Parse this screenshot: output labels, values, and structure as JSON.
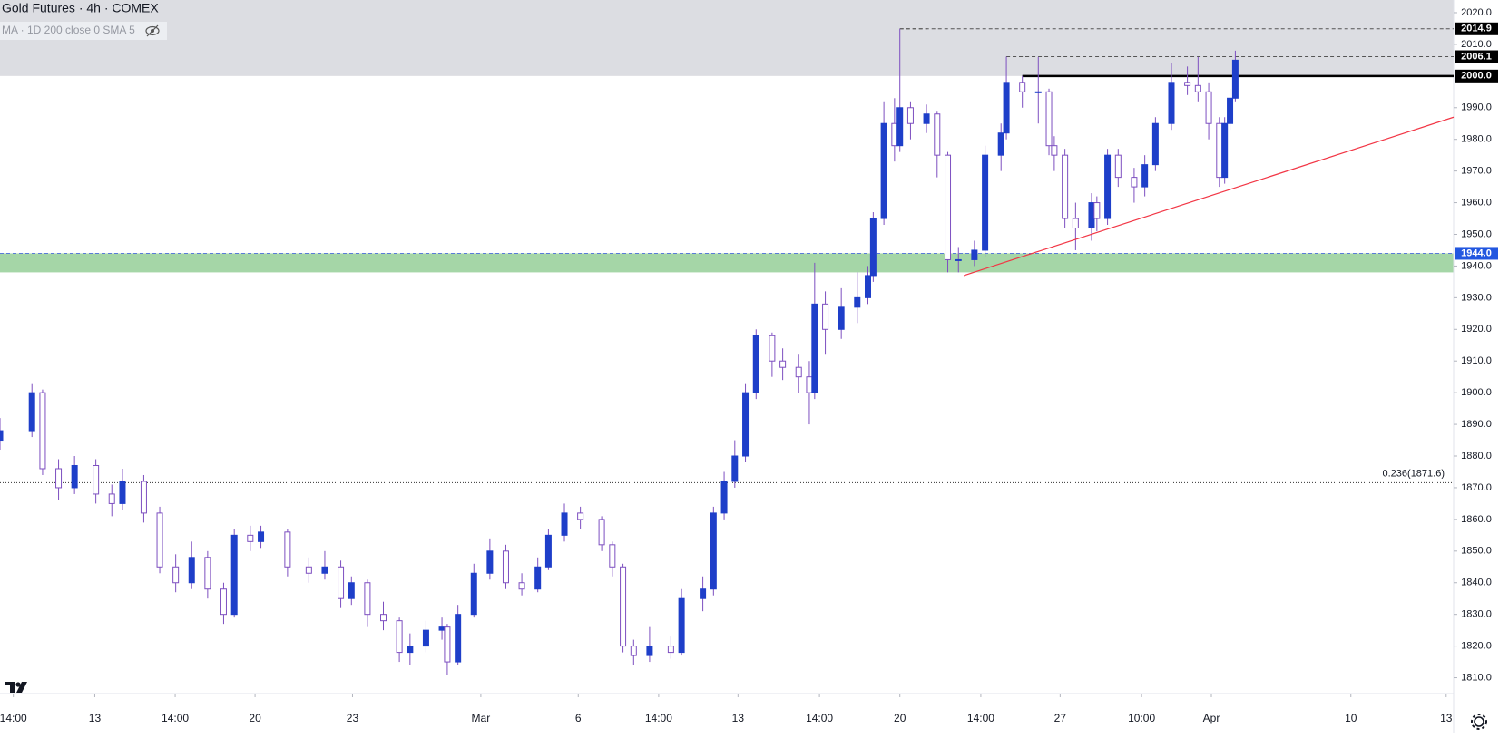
{
  "chart_data": {
    "type": "candlestick",
    "title": "Gold Futures · 4h · COMEX",
    "subtitle": "MA · 1D 200 close 0 SMA 5",
    "up_color": "#1e3fc9",
    "down_color": "#7d4fc0",
    "xlim": [
      0,
      273
    ],
    "ylim": [
      1805,
      2024
    ],
    "xticks": [
      {
        "value": 2.5,
        "label": "14:00"
      },
      {
        "value": 17.8,
        "label": "13"
      },
      {
        "value": 32.9,
        "label": "14:00"
      },
      {
        "value": 47.9,
        "label": "20"
      },
      {
        "value": 66.2,
        "label": "23"
      },
      {
        "value": 90.3,
        "label": "Mar"
      },
      {
        "value": 108.6,
        "label": "6"
      },
      {
        "value": 123.7,
        "label": "14:00"
      },
      {
        "value": 138.6,
        "label": "13"
      },
      {
        "value": 153.9,
        "label": "14:00"
      },
      {
        "value": 169,
        "label": "20"
      },
      {
        "value": 184.2,
        "label": "14:00"
      },
      {
        "value": 199.1,
        "label": "27"
      },
      {
        "value": 214.4,
        "label": "10:00"
      },
      {
        "value": 227.5,
        "label": "Apr"
      },
      {
        "value": 253.7,
        "label": "10"
      },
      {
        "value": 271.6,
        "label": "13"
      }
    ],
    "yticks": [
      {
        "value": 1810,
        "label": "1810.0"
      },
      {
        "value": 1820,
        "label": "1820.0"
      },
      {
        "value": 1830,
        "label": "1830.0"
      },
      {
        "value": 1840,
        "label": "1840.0"
      },
      {
        "value": 1850,
        "label": "1850.0"
      },
      {
        "value": 1860,
        "label": "1860.0"
      },
      {
        "value": 1870,
        "label": "1870.0"
      },
      {
        "value": 1880,
        "label": "1880.0"
      },
      {
        "value": 1890,
        "label": "1890.0"
      },
      {
        "value": 1900,
        "label": "1900.0"
      },
      {
        "value": 1910,
        "label": "1910.0"
      },
      {
        "value": 1920,
        "label": "1920.0"
      },
      {
        "value": 1930,
        "label": "1930.0"
      },
      {
        "value": 1940,
        "label": "1940.0"
      },
      {
        "value": 1950,
        "label": "1950.0"
      },
      {
        "value": 1960,
        "label": "1960.0"
      },
      {
        "value": 1970,
        "label": "1970.0"
      },
      {
        "value": 1980,
        "label": "1980.0"
      },
      {
        "value": 1990,
        "label": "1990.0"
      },
      {
        "value": 2010,
        "label": "2010.0"
      },
      {
        "value": 2020,
        "label": "2020.0"
      }
    ],
    "x": [
      0,
      6,
      8,
      11,
      14,
      18,
      21,
      23,
      27,
      30,
      33,
      36,
      39,
      42,
      44,
      47,
      49,
      54,
      58,
      61,
      64,
      66,
      69,
      72,
      75,
      77,
      80,
      83,
      84,
      86,
      89,
      92,
      95,
      98,
      101,
      103,
      106,
      109,
      113,
      115,
      117,
      119,
      122,
      126,
      128,
      132,
      134,
      136,
      138,
      140,
      142,
      145,
      147,
      150,
      152,
      153,
      155,
      158,
      161,
      163,
      164,
      166,
      168,
      169,
      171,
      174,
      176,
      178,
      180,
      183,
      185,
      188,
      189,
      192,
      195,
      197,
      198,
      200,
      202,
      205,
      206,
      208,
      210,
      213,
      215,
      217,
      220,
      223,
      225,
      227,
      229,
      230,
      231,
      232
    ],
    "open": [
      1885,
      1888,
      1900,
      1876,
      1870,
      1877,
      1868,
      1865,
      1872,
      1862,
      1845,
      1840,
      1848,
      1838,
      1830,
      1855,
      1853,
      1856,
      1845,
      1843,
      1845,
      1835,
      1840,
      1830,
      1828,
      1818,
      1820,
      1825,
      1826,
      1815,
      1830,
      1843,
      1850,
      1840,
      1838,
      1845,
      1855,
      1862,
      1860,
      1852,
      1845,
      1820,
      1817,
      1820,
      1818,
      1835,
      1838,
      1862,
      1872,
      1880,
      1900,
      1918,
      1910,
      1908,
      1905,
      1900,
      1928,
      1920,
      1927,
      1930,
      1937,
      1955,
      1985,
      1978,
      1990,
      1985,
      1988,
      1975,
      1942,
      1942,
      1945,
      1975,
      1982,
      1998,
      1995,
      1995,
      1978,
      1975,
      1955,
      1952,
      1960,
      1955,
      1975,
      1968,
      1965,
      1972,
      1985,
      1998,
      1997,
      1995,
      1985,
      1968,
      1985,
      1993
    ],
    "high": [
      1892,
      1903,
      1901,
      1879,
      1880,
      1879,
      1871,
      1876,
      1874,
      1864,
      1849,
      1853,
      1850,
      1840,
      1857,
      1858,
      1858,
      1857,
      1848,
      1850,
      1847,
      1842,
      1841,
      1834,
      1829,
      1824,
      1828,
      1829,
      1827,
      1833,
      1846,
      1854,
      1852,
      1843,
      1848,
      1857,
      1865,
      1864,
      1861,
      1853,
      1846,
      1822,
      1826,
      1823,
      1838,
      1842,
      1864,
      1875,
      1885,
      1903,
      1920,
      1919,
      1914,
      1912,
      1910,
      1941,
      1932,
      1933,
      1938,
      1940,
      1957,
      1992,
      1993,
      2014.9,
      1992,
      1991,
      1989,
      1976,
      1946,
      1948,
      1978,
      1985,
      2006.1,
      2000,
      2006,
      1996,
      1981,
      1977,
      1960,
      1963,
      1962,
      1977,
      1977,
      1971,
      1975,
      1987,
      2004,
      2003,
      2006,
      1998,
      1987,
      1987,
      1996,
      2008
    ],
    "low": [
      1882,
      1886,
      1874,
      1866,
      1868,
      1865,
      1861,
      1863,
      1859,
      1843,
      1837,
      1838,
      1835,
      1827,
      1829,
      1850,
      1851,
      1842,
      1840,
      1841,
      1832,
      1833,
      1826,
      1825,
      1815,
      1814,
      1818,
      1822,
      1811,
      1814,
      1829,
      1841,
      1838,
      1836,
      1837,
      1844,
      1853,
      1857,
      1850,
      1842,
      1818,
      1814,
      1815,
      1816,
      1817,
      1831,
      1836,
      1860,
      1870,
      1878,
      1898,
      1905,
      1904,
      1900,
      1890,
      1898,
      1912,
      1917,
      1922,
      1928,
      1935,
      1953,
      1973,
      1976,
      1980,
      1982,
      1968,
      1938,
      1938,
      1940,
      1943,
      1970,
      1980,
      1990,
      1985,
      1975,
      1970,
      1952,
      1945,
      1948,
      1951,
      1953,
      1965,
      1960,
      1962,
      1970,
      1983,
      1994,
      1992,
      1980,
      1965,
      1966,
      1983,
      1992
    ],
    "close": [
      1888,
      1900,
      1876,
      1870,
      1877,
      1868,
      1865,
      1872,
      1862,
      1845,
      1840,
      1848,
      1838,
      1830,
      1855,
      1853,
      1856,
      1845,
      1843,
      1845,
      1835,
      1840,
      1830,
      1828,
      1818,
      1820,
      1825,
      1826,
      1815,
      1830,
      1843,
      1850,
      1840,
      1838,
      1845,
      1855,
      1862,
      1860,
      1852,
      1845,
      1820,
      1817,
      1820,
      1818,
      1835,
      1838,
      1862,
      1872,
      1880,
      1900,
      1918,
      1910,
      1908,
      1905,
      1900,
      1928,
      1920,
      1927,
      1930,
      1937,
      1955,
      1985,
      1978,
      1990,
      1985,
      1988,
      1975,
      1942,
      1942,
      1945,
      1975,
      1982,
      1998,
      1995,
      1995,
      1978,
      1975,
      1955,
      1952,
      1960,
      1955,
      1975,
      1968,
      1965,
      1972,
      1985,
      1998,
      1997,
      1995,
      1985,
      1968,
      1985,
      1993,
      2005
    ],
    "zones": [
      {
        "from": 2000,
        "to": 2024,
        "color": "#dcdde2"
      },
      {
        "from": 1938,
        "to": 1944,
        "color": "#a5d6a7"
      }
    ],
    "levels": [
      {
        "value": 2014.9,
        "label": "2014.9",
        "style": "dashed",
        "color": "#555555",
        "box_color": "#000000"
      },
      {
        "value": 2006.1,
        "label": "2006.1",
        "style": "dashed",
        "color": "#555555",
        "box_color": "#000000"
      },
      {
        "value": 2000,
        "label": "2000.0",
        "style": "solid",
        "color": "#000000",
        "box_color": "#000000"
      },
      {
        "value": 1944,
        "label": "1944.0",
        "style": "dashed",
        "color": "#5a7bd8",
        "box_color": "#2257e0"
      }
    ],
    "fib": {
      "value": 1871.6,
      "label": "0.236(1871.6)"
    },
    "trendline": {
      "x": [
        181,
        273
      ],
      "y": [
        1937,
        1987
      ],
      "color": "#f23645"
    }
  }
}
